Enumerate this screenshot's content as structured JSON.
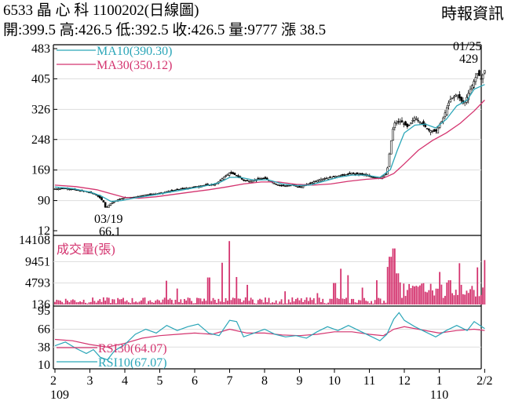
{
  "header": {
    "title": "6533 晶 心 科 1100202(日線圖)",
    "source": "時報資訊",
    "quote": "開:399.5 高:426.5 低:392.5 收:426.5 量:9777 漲 38.5"
  },
  "chart_data": [
    {
      "type": "candlestick",
      "name": "price",
      "ylim": [
        12,
        483
      ],
      "y_ticks": [
        "483",
        "405",
        "326",
        "248",
        "169",
        "90",
        "12"
      ],
      "legend": [
        "MA10(390.30)",
        "MA30(350.12)"
      ],
      "annotations": [
        {
          "label": "03/19",
          "value": "66.1"
        },
        {
          "label": "01/25",
          "value": "429"
        }
      ],
      "close_path": [
        [
          2.0,
          120
        ],
        [
          2.3,
          122
        ],
        [
          2.6,
          117
        ],
        [
          2.9,
          113
        ],
        [
          3.1,
          108
        ],
        [
          3.2,
          103
        ],
        [
          3.3,
          96
        ],
        [
          3.4,
          85
        ],
        [
          3.45,
          70
        ],
        [
          3.5,
          75
        ],
        [
          3.6,
          83
        ],
        [
          3.8,
          92
        ],
        [
          4.0,
          98
        ],
        [
          4.3,
          99
        ],
        [
          4.6,
          105
        ],
        [
          5.0,
          108
        ],
        [
          5.3,
          115
        ],
        [
          5.6,
          120
        ],
        [
          6.0,
          125
        ],
        [
          6.3,
          130
        ],
        [
          6.6,
          132
        ],
        [
          6.8,
          148
        ],
        [
          7.0,
          162
        ],
        [
          7.2,
          155
        ],
        [
          7.4,
          142
        ],
        [
          7.6,
          140
        ],
        [
          7.8,
          146
        ],
        [
          8.0,
          148
        ],
        [
          8.2,
          138
        ],
        [
          8.4,
          130
        ],
        [
          8.6,
          128
        ],
        [
          8.8,
          130
        ],
        [
          9.0,
          124
        ],
        [
          9.3,
          135
        ],
        [
          9.6,
          145
        ],
        [
          9.9,
          150
        ],
        [
          10.2,
          155
        ],
        [
          10.5,
          160
        ],
        [
          10.8,
          158
        ],
        [
          11.0,
          152
        ],
        [
          11.3,
          148
        ],
        [
          11.5,
          160
        ],
        [
          11.6,
          230
        ],
        [
          11.7,
          290
        ],
        [
          11.9,
          295
        ],
        [
          12.1,
          280
        ],
        [
          12.3,
          305
        ],
        [
          12.5,
          290
        ],
        [
          12.7,
          272
        ],
        [
          12.9,
          268
        ],
        [
          13.1,
          300
        ],
        [
          13.3,
          350
        ],
        [
          13.5,
          365
        ],
        [
          13.7,
          340
        ],
        [
          13.9,
          380
        ],
        [
          14.1,
          420
        ],
        [
          14.2,
          405
        ],
        [
          14.3,
          426.5
        ]
      ],
      "ma10_path": [
        [
          2.0,
          125
        ],
        [
          2.5,
          121
        ],
        [
          3.0,
          112
        ],
        [
          3.3,
          103
        ],
        [
          3.6,
          88
        ],
        [
          3.9,
          90
        ],
        [
          4.3,
          97
        ],
        [
          4.8,
          104
        ],
        [
          5.3,
          112
        ],
        [
          5.8,
          120
        ],
        [
          6.3,
          128
        ],
        [
          6.7,
          136
        ],
        [
          7.0,
          150
        ],
        [
          7.3,
          150
        ],
        [
          7.7,
          143
        ],
        [
          8.1,
          144
        ],
        [
          8.5,
          133
        ],
        [
          8.9,
          129
        ],
        [
          9.3,
          130
        ],
        [
          9.7,
          140
        ],
        [
          10.1,
          150
        ],
        [
          10.5,
          156
        ],
        [
          10.9,
          156
        ],
        [
          11.3,
          150
        ],
        [
          11.6,
          170
        ],
        [
          11.8,
          220
        ],
        [
          12.0,
          265
        ],
        [
          12.3,
          285
        ],
        [
          12.6,
          288
        ],
        [
          12.9,
          278
        ],
        [
          13.2,
          300
        ],
        [
          13.5,
          335
        ],
        [
          13.8,
          350
        ],
        [
          14.0,
          378
        ],
        [
          14.3,
          390.3
        ]
      ],
      "ma30_path": [
        [
          2.0,
          130
        ],
        [
          2.6,
          126
        ],
        [
          3.2,
          118
        ],
        [
          3.6,
          108
        ],
        [
          4.0,
          98
        ],
        [
          4.4,
          96
        ],
        [
          4.9,
          100
        ],
        [
          5.4,
          106
        ],
        [
          5.9,
          112
        ],
        [
          6.4,
          118
        ],
        [
          6.9,
          125
        ],
        [
          7.4,
          133
        ],
        [
          7.9,
          138
        ],
        [
          8.4,
          138
        ],
        [
          8.9,
          132
        ],
        [
          9.4,
          130
        ],
        [
          9.9,
          133
        ],
        [
          10.4,
          140
        ],
        [
          10.9,
          145
        ],
        [
          11.4,
          148
        ],
        [
          11.7,
          160
        ],
        [
          12.0,
          185
        ],
        [
          12.4,
          220
        ],
        [
          12.8,
          245
        ],
        [
          13.2,
          265
        ],
        [
          13.6,
          290
        ],
        [
          14.0,
          322
        ],
        [
          14.3,
          350.12
        ]
      ]
    },
    {
      "type": "bar",
      "name": "volume",
      "ylim": [
        136,
        14108
      ],
      "y_ticks": [
        "14108",
        "9451",
        "4793",
        "136"
      ],
      "legend": [
        "成交量(張)"
      ],
      "spikes": [
        [
          5.2,
          5300
        ],
        [
          5.5,
          3600
        ],
        [
          6.4,
          6000
        ],
        [
          6.8,
          9200
        ],
        [
          7.0,
          13900
        ],
        [
          7.2,
          6100
        ],
        [
          7.5,
          4400
        ],
        [
          8.6,
          3000
        ],
        [
          9.5,
          2600
        ],
        [
          10.0,
          4800
        ],
        [
          10.2,
          7900
        ],
        [
          10.4,
          6500
        ],
        [
          10.8,
          3800
        ],
        [
          11.2,
          5400
        ],
        [
          11.5,
          8300
        ],
        [
          11.6,
          10500
        ],
        [
          11.7,
          12300
        ],
        [
          11.8,
          6900
        ],
        [
          12.4,
          4000
        ],
        [
          13.0,
          7200
        ],
        [
          13.3,
          5400
        ],
        [
          13.6,
          9100
        ],
        [
          14.1,
          8200
        ],
        [
          14.3,
          9777
        ]
      ]
    },
    {
      "type": "line",
      "name": "rsi",
      "ylim": [
        10,
        95
      ],
      "y_ticks": [
        "95",
        "66",
        "38",
        "10"
      ],
      "legend": [
        "RSI30(64.07)",
        "RSI10(67.07)"
      ],
      "rsi10_path": [
        [
          2.0,
          40
        ],
        [
          2.3,
          46
        ],
        [
          2.6,
          36
        ],
        [
          2.9,
          28
        ],
        [
          3.1,
          34
        ],
        [
          3.3,
          22
        ],
        [
          3.5,
          18
        ],
        [
          3.7,
          32
        ],
        [
          4.0,
          42
        ],
        [
          4.3,
          58
        ],
        [
          4.6,
          66
        ],
        [
          4.9,
          60
        ],
        [
          5.2,
          72
        ],
        [
          5.5,
          64
        ],
        [
          5.8,
          70
        ],
        [
          6.1,
          74
        ],
        [
          6.4,
          60
        ],
        [
          6.7,
          56
        ],
        [
          7.0,
          80
        ],
        [
          7.2,
          78
        ],
        [
          7.4,
          54
        ],
        [
          7.7,
          60
        ],
        [
          8.0,
          66
        ],
        [
          8.3,
          58
        ],
        [
          8.6,
          54
        ],
        [
          8.9,
          56
        ],
        [
          9.2,
          52
        ],
        [
          9.5,
          62
        ],
        [
          9.8,
          70
        ],
        [
          10.1,
          64
        ],
        [
          10.4,
          72
        ],
        [
          10.7,
          64
        ],
        [
          11.0,
          56
        ],
        [
          11.3,
          48
        ],
        [
          11.5,
          58
        ],
        [
          11.7,
          82
        ],
        [
          11.85,
          92
        ],
        [
          12.0,
          80
        ],
        [
          12.3,
          70
        ],
        [
          12.6,
          62
        ],
        [
          12.9,
          54
        ],
        [
          13.2,
          64
        ],
        [
          13.5,
          72
        ],
        [
          13.8,
          64
        ],
        [
          14.0,
          78
        ],
        [
          14.3,
          67.07
        ]
      ],
      "rsi30_path": [
        [
          2.0,
          50
        ],
        [
          2.5,
          48
        ],
        [
          3.0,
          42
        ],
        [
          3.5,
          38
        ],
        [
          4.0,
          44
        ],
        [
          4.5,
          52
        ],
        [
          5.0,
          56
        ],
        [
          5.5,
          58
        ],
        [
          6.0,
          60
        ],
        [
          6.5,
          58
        ],
        [
          7.0,
          66
        ],
        [
          7.5,
          60
        ],
        [
          8.0,
          60
        ],
        [
          8.5,
          57
        ],
        [
          9.0,
          56
        ],
        [
          9.5,
          58
        ],
        [
          10.0,
          62
        ],
        [
          10.5,
          62
        ],
        [
          11.0,
          58
        ],
        [
          11.4,
          56
        ],
        [
          11.7,
          66
        ],
        [
          12.0,
          70
        ],
        [
          12.5,
          65
        ],
        [
          13.0,
          60
        ],
        [
          13.5,
          64
        ],
        [
          14.0,
          66
        ],
        [
          14.3,
          64.07
        ]
      ]
    }
  ],
  "x_axis": {
    "months": [
      "2",
      "3",
      "4",
      "5",
      "6",
      "7",
      "8",
      "9",
      "10",
      "11",
      "12",
      "1",
      "2/2"
    ],
    "years": [
      "109",
      "110"
    ]
  },
  "colors": {
    "ma10": "#2ba6b8",
    "ma30": "#d4346f",
    "candle": "#000000",
    "volume": "#d4346f"
  }
}
